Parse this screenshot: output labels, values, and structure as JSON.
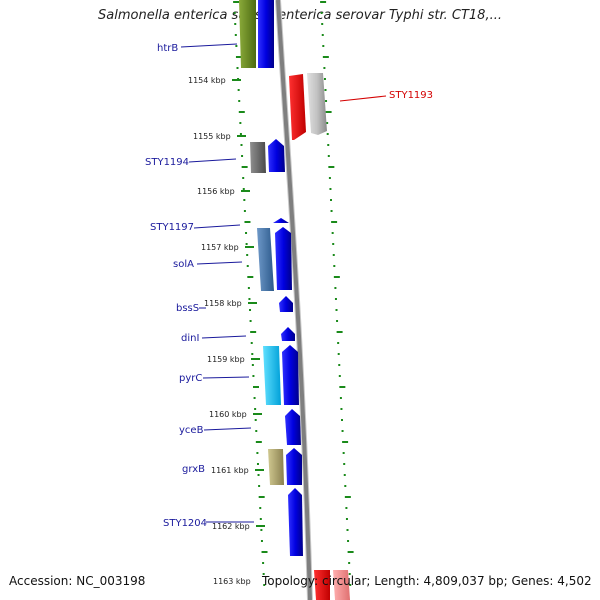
{
  "title": "Salmonella enterica subsp. enterica serovar Typhi str. CT18,...",
  "accession": "Accession: NC_003198",
  "topology": "Topology: circular; Length: 4,809,037 bp; Genes: 4,502",
  "colors": {
    "backbone": "#7f7f7f",
    "tick": "#1a8a1a",
    "label_blue": "#1a1a9c",
    "label_red": "#d40000",
    "forward_cds": "#0000ee"
  },
  "kbp_labels": [
    "1154 kbp",
    "1155 kbp",
    "1156 kbp",
    "1157 kbp",
    "1158 kbp",
    "1159 kbp",
    "1160 kbp",
    "1161 kbp",
    "1162 kbp",
    "1163 kbp"
  ],
  "gene_labels": [
    "htrB",
    "STY1193",
    "STY1194",
    "STY1197",
    "solA",
    "bssS",
    "dinI",
    "pyrC",
    "yceB",
    "grxB",
    "STY1204"
  ]
}
